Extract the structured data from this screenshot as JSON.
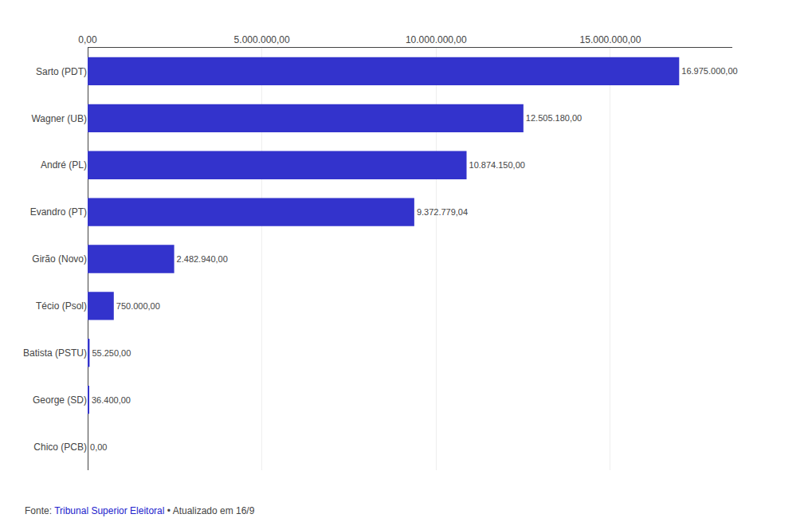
{
  "chart_data": {
    "type": "bar",
    "orientation": "horizontal",
    "categories": [
      "Sarto (PDT)",
      "Wagner (UB)",
      "André (PL)",
      "Evandro (PT)",
      "Girão (Novo)",
      "Técio (Psol)",
      "Batista (PSTU)",
      "George (SD)",
      "Chico (PCB)"
    ],
    "values": [
      16975000.0,
      12505180.0,
      10874150.0,
      9372779.04,
      2482940.0,
      750000.0,
      55250.0,
      36400.0,
      0.0
    ],
    "value_labels": [
      "16.975.000,00",
      "12.505.180,00",
      "10.874.150,00",
      "9.372.779,04",
      "2.482.940,00",
      "750.000,00",
      "55.250,00",
      "36.400,00",
      "0,00"
    ],
    "data_labels": true,
    "color": "#3333cc",
    "xlim": [
      0,
      18500000
    ],
    "xticks": [
      {
        "value": 0,
        "label": "0,00"
      },
      {
        "value": 5000000,
        "label": "5.000.000,00"
      },
      {
        "value": 10000000,
        "label": "10.000.000,00"
      },
      {
        "value": 15000000,
        "label": "15.000.000,00"
      }
    ],
    "grid": true,
    "annotations": [
      "Fonte: ",
      "Tribunal Superior Eleitoral",
      " • Atualizado em 16/9"
    ]
  }
}
